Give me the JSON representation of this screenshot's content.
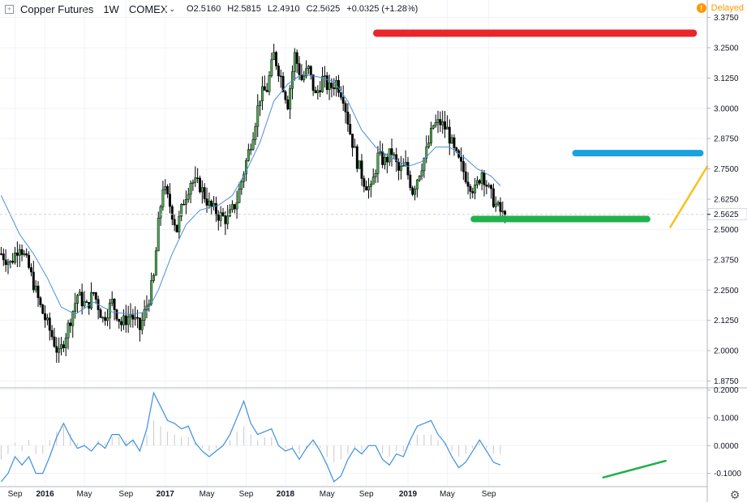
{
  "header": {
    "title": "Copper Futures",
    "interval": "1W",
    "exchange": "COMEX",
    "ohlc": [
      {
        "k": "O",
        "v": "2.5160"
      },
      {
        "k": "H",
        "v": "2.5815"
      },
      {
        "k": "L",
        "v": "2.4910"
      },
      {
        "k": "C",
        "v": "2.5625"
      }
    ],
    "change": "+0.0325 (+1.28%)",
    "delayed_label": "Delayed",
    "delayed_icon": "!"
  },
  "colors": {
    "up": "#4caf50",
    "down": "#000000",
    "ma": "#4a90d9",
    "macd": "#3d8fe0",
    "hist": "#c8c8c8",
    "red_line": "#e8262c",
    "blue_line": "#17a2e0",
    "green_line": "#22b14c",
    "orange_line": "#f7c21a"
  },
  "chart_data": {
    "type": "line",
    "title": "Copper Futures",
    "price_axis": {
      "ylim": [
        1.85,
        3.38
      ],
      "ticks": [
        "1.8750",
        "2.0000",
        "2.1250",
        "2.2500",
        "2.3750",
        "2.5000",
        "2.6250",
        "2.7500",
        "2.8750",
        "3.0000",
        "3.1250",
        "3.2500",
        "3.3750"
      ],
      "last_price_label": "2.5625",
      "last_price": 2.5625
    },
    "osc_axis": {
      "ylim": [
        -0.145,
        0.205
      ],
      "ticks": [
        "0.2000",
        "0.1000",
        "0.0000",
        "-0.1000"
      ]
    },
    "x_axis": {
      "labels": [
        {
          "t": "Sep",
          "major": false
        },
        {
          "t": "2016",
          "major": true
        },
        {
          "t": "May",
          "major": false
        },
        {
          "t": "Sep",
          "major": false
        },
        {
          "t": "2017",
          "major": true
        },
        {
          "t": "May",
          "major": false
        },
        {
          "t": "Sep",
          "major": false
        },
        {
          "t": "2018",
          "major": true
        },
        {
          "t": "May",
          "major": false
        },
        {
          "t": "Sep",
          "major": false
        },
        {
          "t": "2019",
          "major": true
        },
        {
          "t": "May",
          "major": false
        },
        {
          "t": "Sep",
          "major": false
        }
      ]
    },
    "price_path": [
      [
        0,
        2.4
      ],
      [
        4,
        2.36
      ],
      [
        8,
        2.44
      ],
      [
        12,
        2.34
      ],
      [
        17,
        2.18
      ],
      [
        22,
        2.06
      ],
      [
        25,
        1.98
      ],
      [
        29,
        2.1
      ],
      [
        33,
        2.23
      ],
      [
        37,
        2.18
      ],
      [
        40,
        2.24
      ],
      [
        44,
        2.13
      ],
      [
        48,
        2.2
      ],
      [
        52,
        2.11
      ],
      [
        56,
        2.15
      ],
      [
        60,
        2.09
      ],
      [
        64,
        2.22
      ],
      [
        66,
        2.3
      ],
      [
        68,
        2.52
      ],
      [
        70,
        2.68
      ],
      [
        73,
        2.6
      ],
      [
        76,
        2.5
      ],
      [
        79,
        2.62
      ],
      [
        82,
        2.7
      ],
      [
        86,
        2.68
      ],
      [
        90,
        2.6
      ],
      [
        94,
        2.56
      ],
      [
        98,
        2.54
      ],
      [
        102,
        2.62
      ],
      [
        105,
        2.74
      ],
      [
        109,
        2.9
      ],
      [
        112,
        3.05
      ],
      [
        115,
        3.08
      ],
      [
        118,
        3.22
      ],
      [
        121,
        3.13
      ],
      [
        124,
        3.02
      ],
      [
        127,
        3.22
      ],
      [
        130,
        3.12
      ],
      [
        133,
        3.16
      ],
      [
        136,
        3.05
      ],
      [
        139,
        3.12
      ],
      [
        142,
        3.08
      ],
      [
        145,
        3.11
      ],
      [
        148,
        3.05
      ],
      [
        151,
        2.9
      ],
      [
        154,
        2.78
      ],
      [
        157,
        2.7
      ],
      [
        160,
        2.66
      ],
      [
        163,
        2.8
      ],
      [
        166,
        2.78
      ],
      [
        169,
        2.82
      ],
      [
        172,
        2.74
      ],
      [
        175,
        2.76
      ],
      [
        178,
        2.66
      ],
      [
        181,
        2.74
      ],
      [
        184,
        2.82
      ],
      [
        187,
        2.93
      ],
      [
        190,
        2.94
      ],
      [
        193,
        2.91
      ],
      [
        196,
        2.82
      ],
      [
        199,
        2.76
      ],
      [
        202,
        2.7
      ],
      [
        205,
        2.66
      ],
      [
        208,
        2.74
      ],
      [
        211,
        2.66
      ],
      [
        214,
        2.6
      ],
      [
        217,
        2.56
      ],
      [
        218,
        2.5625
      ]
    ],
    "ma_path": [
      [
        0,
        2.64
      ],
      [
        8,
        2.48
      ],
      [
        14,
        2.4
      ],
      [
        20,
        2.3
      ],
      [
        26,
        2.18
      ],
      [
        32,
        2.15
      ],
      [
        40,
        2.2
      ],
      [
        48,
        2.16
      ],
      [
        56,
        2.15
      ],
      [
        63,
        2.16
      ],
      [
        68,
        2.25
      ],
      [
        74,
        2.4
      ],
      [
        80,
        2.52
      ],
      [
        86,
        2.58
      ],
      [
        94,
        2.6
      ],
      [
        100,
        2.64
      ],
      [
        106,
        2.74
      ],
      [
        112,
        2.86
      ],
      [
        118,
        3.03
      ],
      [
        124,
        3.1
      ],
      [
        130,
        3.14
      ],
      [
        137,
        3.13
      ],
      [
        144,
        3.11
      ],
      [
        150,
        3.03
      ],
      [
        156,
        2.91
      ],
      [
        162,
        2.84
      ],
      [
        168,
        2.8
      ],
      [
        176,
        2.76
      ],
      [
        182,
        2.78
      ],
      [
        188,
        2.84
      ],
      [
        194,
        2.84
      ],
      [
        200,
        2.8
      ],
      [
        206,
        2.75
      ],
      [
        212,
        2.72
      ],
      [
        216,
        2.68
      ]
    ],
    "macd_path": [
      [
        0,
        -0.13
      ],
      [
        3,
        -0.1
      ],
      [
        6,
        -0.04
      ],
      [
        9,
        -0.07
      ],
      [
        12,
        -0.04
      ],
      [
        15,
        -0.1
      ],
      [
        18,
        -0.1
      ],
      [
        21,
        -0.04
      ],
      [
        24,
        0.03
      ],
      [
        27,
        0.08
      ],
      [
        30,
        0.03
      ],
      [
        33,
        -0.01
      ],
      [
        36,
        0.0
      ],
      [
        39,
        -0.02
      ],
      [
        42,
        0.01
      ],
      [
        45,
        -0.01
      ],
      [
        48,
        0.04
      ],
      [
        51,
        0.04
      ],
      [
        54,
        0.0
      ],
      [
        57,
        0.02
      ],
      [
        60,
        -0.02
      ],
      [
        63,
        0.06
      ],
      [
        66,
        0.19
      ],
      [
        69,
        0.14
      ],
      [
        72,
        0.09
      ],
      [
        75,
        0.08
      ],
      [
        78,
        0.06
      ],
      [
        81,
        0.07
      ],
      [
        84,
        0.01
      ],
      [
        87,
        -0.02
      ],
      [
        90,
        -0.04
      ],
      [
        93,
        -0.02
      ],
      [
        96,
        0.0
      ],
      [
        99,
        0.04
      ],
      [
        102,
        0.1
      ],
      [
        105,
        0.16
      ],
      [
        108,
        0.08
      ],
      [
        111,
        0.04
      ],
      [
        114,
        0.05
      ],
      [
        117,
        0.06
      ],
      [
        120,
        0.0
      ],
      [
        123,
        -0.02
      ],
      [
        126,
        -0.01
      ],
      [
        129,
        -0.05
      ],
      [
        132,
        -0.01
      ],
      [
        135,
        0.02
      ],
      [
        138,
        -0.02
      ],
      [
        141,
        -0.07
      ],
      [
        144,
        -0.13
      ],
      [
        147,
        -0.11
      ],
      [
        150,
        -0.05
      ],
      [
        153,
        -0.01
      ],
      [
        156,
        -0.03
      ],
      [
        159,
        0.0
      ],
      [
        162,
        0.0
      ],
      [
        165,
        -0.05
      ],
      [
        168,
        -0.07
      ],
      [
        171,
        -0.03
      ],
      [
        174,
        -0.04
      ],
      [
        177,
        0.02
      ],
      [
        180,
        0.07
      ],
      [
        183,
        0.08
      ],
      [
        186,
        0.09
      ],
      [
        189,
        0.04
      ],
      [
        192,
        0.01
      ],
      [
        195,
        -0.04
      ],
      [
        198,
        -0.08
      ],
      [
        201,
        -0.06
      ],
      [
        204,
        -0.02
      ],
      [
        207,
        0.02
      ],
      [
        210,
        -0.02
      ],
      [
        213,
        -0.06
      ],
      [
        216,
        -0.07
      ]
    ],
    "hist_values": [
      -0.05,
      -0.03,
      0.01,
      -0.02,
      0.02,
      -0.03,
      -0.03,
      0.02,
      0.05,
      0.07,
      0.04,
      0.01,
      0.01,
      0.0,
      0.02,
      0.01,
      0.03,
      0.03,
      0.02,
      0.02,
      0.0,
      0.04,
      0.09,
      0.07,
      0.05,
      0.04,
      0.03,
      0.03,
      0.01,
      -0.01,
      -0.02,
      -0.01,
      0.0,
      0.02,
      0.05,
      0.07,
      0.04,
      0.02,
      0.03,
      0.03,
      0.0,
      -0.01,
      -0.01,
      -0.03,
      -0.01,
      0.01,
      -0.01,
      -0.04,
      -0.06,
      -0.05,
      -0.03,
      -0.01,
      -0.02,
      0.0,
      0.0,
      -0.03,
      -0.04,
      -0.02,
      -0.02,
      0.01,
      0.04,
      0.04,
      0.04,
      0.02,
      0.01,
      -0.02,
      -0.04,
      -0.03,
      -0.01,
      0.01,
      -0.01,
      -0.03,
      -0.03
    ],
    "annotations": {
      "red": {
        "y1": 3.31,
        "y2": 3.31,
        "x1": 163,
        "x2": 300
      },
      "blue": {
        "y1": 2.815,
        "y2": 2.815,
        "x1": 249,
        "x2": 303
      },
      "green": {
        "y1": 2.543,
        "y2": 2.543,
        "x1": 205,
        "x2": 280
      },
      "orange": {
        "y1": 2.51,
        "y2": 2.76,
        "x1": 290,
        "x2": 306
      },
      "green_osc": {
        "y1": -0.115,
        "y2": -0.055,
        "x1": 261,
        "x2": 288
      }
    }
  }
}
